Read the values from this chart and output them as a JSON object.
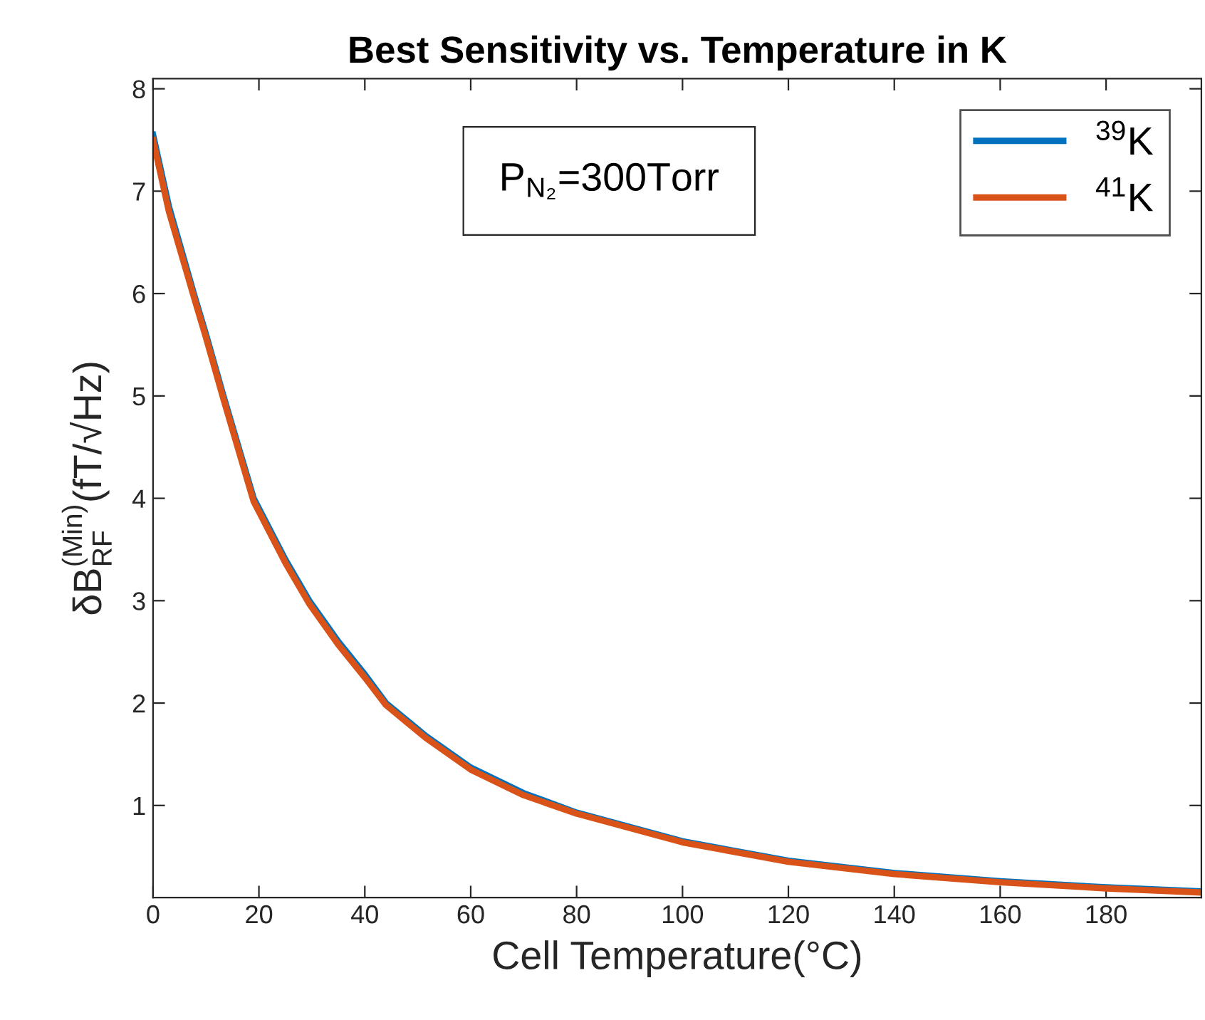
{
  "chart_data": {
    "type": "line",
    "title": "Best Sensitivity vs. Temperature in K",
    "xlabel": "Cell Temperature(°C)",
    "ylabel": "δB$^{(Min)}$$_{RF}$(fT/√Hz)",
    "annotations": [
      "P$_{N₂}$=300Torr"
    ],
    "xlim": [
      0,
      198
    ],
    "xticks": [
      0,
      20,
      40,
      60,
      80,
      100,
      120,
      140,
      160,
      180
    ],
    "ylim": [
      0.1,
      8.1
    ],
    "yticks": [
      1,
      2,
      3,
      4,
      5,
      6,
      7,
      8
    ],
    "grid": false,
    "legend": "top right",
    "marker": "none",
    "line_style": "solid",
    "series": [
      {
        "name": "$^{39}$K",
        "color": "#0072bd",
        "x": [
          0,
          3,
          7.7,
          10,
          13.3,
          19,
          25,
          29.5,
          35,
          40,
          44,
          51.5,
          60,
          70,
          80,
          100,
          120,
          140,
          160,
          180,
          198
        ],
        "values": [
          7.55,
          6.85,
          6.0,
          5.6,
          5.0,
          4.0,
          3.4,
          3.0,
          2.6,
          2.28,
          2.0,
          1.68,
          1.37,
          1.12,
          0.93,
          0.65,
          0.46,
          0.34,
          0.26,
          0.2,
          0.16
        ]
      },
      {
        "name": "$^{41}$K",
        "color": "#d95319",
        "x": [
          0,
          3,
          7.7,
          10,
          13.3,
          19,
          25,
          29.5,
          35,
          40,
          44,
          51.5,
          60,
          70,
          80,
          100,
          120,
          140,
          160,
          180,
          198
        ],
        "values": [
          7.5,
          6.8,
          5.97,
          5.57,
          4.97,
          3.97,
          3.37,
          2.97,
          2.57,
          2.25,
          1.98,
          1.66,
          1.35,
          1.1,
          0.92,
          0.64,
          0.45,
          0.33,
          0.25,
          0.19,
          0.15
        ]
      }
    ]
  }
}
